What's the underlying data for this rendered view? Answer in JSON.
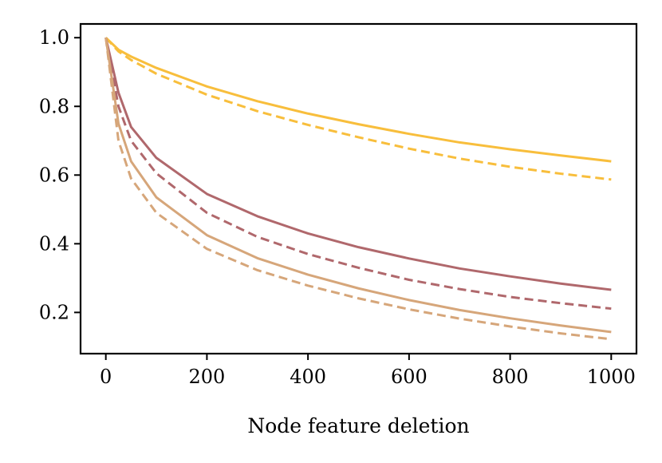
{
  "chart_data": {
    "type": "line",
    "title": "",
    "xlabel": "Node feature deletion",
    "ylabel": "",
    "xlim": [
      -50,
      1050
    ],
    "ylim": [
      0.08,
      1.04
    ],
    "xticks": [
      0,
      200,
      400,
      600,
      800,
      1000
    ],
    "xtick_labels": [
      "0",
      "200",
      "400",
      "600",
      "800",
      "1000"
    ],
    "yticks": [
      0.2,
      0.4,
      0.6,
      0.8,
      1.0
    ],
    "ytick_labels": [
      "0.2",
      "0.4",
      "0.6",
      "0.8",
      "1.0"
    ],
    "grid": false,
    "legend": "none",
    "x": [
      0,
      25,
      50,
      100,
      200,
      300,
      400,
      500,
      600,
      700,
      800,
      900,
      1000
    ],
    "series": [
      {
        "color": "#F8BE3C",
        "dash": "solid",
        "values": [
          1.0,
          0.965,
          0.945,
          0.912,
          0.858,
          0.815,
          0.779,
          0.748,
          0.72,
          0.695,
          0.675,
          0.657,
          0.64
        ]
      },
      {
        "color": "#F8BE3C",
        "dash": "dashed",
        "values": [
          1.0,
          0.96,
          0.935,
          0.895,
          0.834,
          0.786,
          0.746,
          0.71,
          0.677,
          0.648,
          0.624,
          0.604,
          0.587
        ]
      },
      {
        "color": "#B0686C",
        "dash": "solid",
        "values": [
          1.0,
          0.84,
          0.74,
          0.65,
          0.545,
          0.48,
          0.43,
          0.39,
          0.357,
          0.328,
          0.305,
          0.284,
          0.266
        ]
      },
      {
        "color": "#B0686C",
        "dash": "dashed",
        "values": [
          1.0,
          0.8,
          0.7,
          0.605,
          0.49,
          0.42,
          0.37,
          0.33,
          0.295,
          0.268,
          0.245,
          0.227,
          0.211
        ]
      },
      {
        "color": "#D6A67A",
        "dash": "solid",
        "values": [
          1.0,
          0.75,
          0.64,
          0.535,
          0.425,
          0.358,
          0.31,
          0.27,
          0.236,
          0.207,
          0.183,
          0.162,
          0.143
        ]
      },
      {
        "color": "#D6A67A",
        "dash": "dashed",
        "values": [
          1.0,
          0.7,
          0.59,
          0.49,
          0.385,
          0.323,
          0.278,
          0.241,
          0.209,
          0.182,
          0.159,
          0.139,
          0.122
        ]
      }
    ]
  }
}
